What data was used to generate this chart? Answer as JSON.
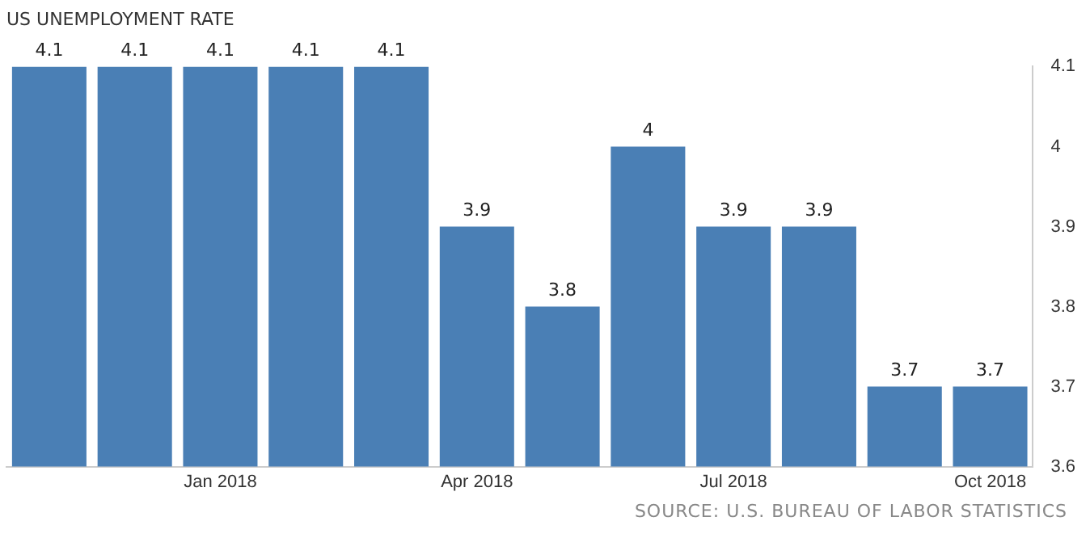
{
  "chart_data": {
    "type": "bar",
    "title": "US UNEMPLOYMENT RATE",
    "categories": [
      null,
      null,
      "Jan 2018",
      null,
      null,
      "Apr 2018",
      null,
      null,
      "Jul 2018",
      null,
      null,
      "Oct 2018"
    ],
    "values": [
      4.1,
      4.1,
      4.1,
      4.1,
      4.1,
      3.9,
      3.8,
      4,
      3.9,
      3.9,
      3.7,
      3.7
    ],
    "color": "#4a7fb5",
    "ylim": [
      3.6,
      4.1
    ],
    "yticks": [
      3.6,
      3.7,
      3.8,
      3.9,
      4,
      4.1
    ],
    "data_labels": true,
    "grid": false,
    "legend": false,
    "annotations": [
      "SOURCE: U.S. BUREAU OF LABOR STATISTICS"
    ]
  }
}
